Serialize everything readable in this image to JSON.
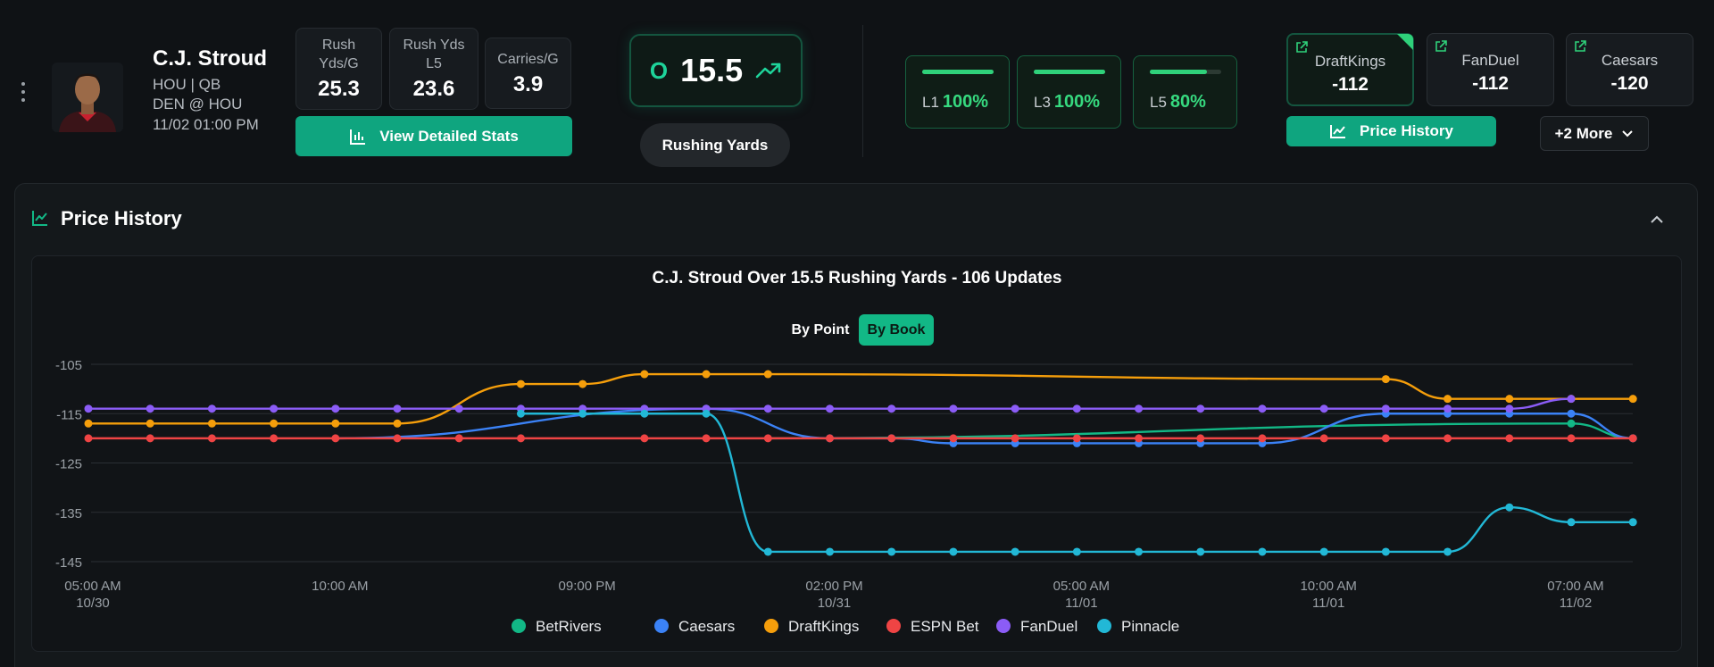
{
  "player": {
    "name": "C.J. Stroud",
    "team_pos": "HOU | QB",
    "matchup": "DEN @ HOU",
    "game_time": "11/02 01:00 PM"
  },
  "stats": [
    {
      "label": "Rush Yds/G",
      "value": "25.3"
    },
    {
      "label": "Rush Yds L5",
      "value": "23.6"
    },
    {
      "label": "Carries/G",
      "value": "3.9"
    }
  ],
  "view_stats_label": "View Detailed Stats",
  "line": {
    "side": "O",
    "value": "15.5",
    "market": "Rushing Yards"
  },
  "hit_rates": [
    {
      "label": "L1",
      "value": "100%",
      "fill": 1.0
    },
    {
      "label": "L3",
      "value": "100%",
      "fill": 1.0
    },
    {
      "label": "L5",
      "value": "80%",
      "fill": 0.8
    }
  ],
  "books": [
    {
      "name": "DraftKings",
      "odds": "-112",
      "active": true
    },
    {
      "name": "FanDuel",
      "odds": "-112",
      "active": false
    },
    {
      "name": "Caesars",
      "odds": "-120",
      "active": false
    }
  ],
  "price_history_button": "Price History",
  "more_label": "+2 More",
  "panel_title": "Price History",
  "toggle": {
    "by_point": "By Point",
    "by_book": "By Book",
    "selected": "By Book"
  },
  "colors": {
    "accent": "#0fa57f",
    "BetRivers": "#12b886",
    "Caesars": "#3b82f6",
    "DraftKings": "#f59e0b",
    "ESPN Bet": "#ef4444",
    "FanDuel": "#8b5cf6",
    "Pinnacle": "#22b8d6"
  },
  "chart_data": {
    "type": "line",
    "title": "C.J. Stroud Over 15.5 Rushing Yards - 106 Updates",
    "xlabel": "",
    "ylabel": "",
    "ylim": [
      -145,
      -105
    ],
    "yticks": [
      -105,
      -115,
      -125,
      -135,
      -145
    ],
    "xlim": [
      0,
      25
    ],
    "xticks": [
      {
        "x": 0,
        "label": "05:00 AM",
        "sub": "10/30"
      },
      {
        "x": 4,
        "label": "10:00 AM",
        "sub": ""
      },
      {
        "x": 8,
        "label": "09:00 PM",
        "sub": ""
      },
      {
        "x": 12,
        "label": "02:00 PM",
        "sub": "10/31"
      },
      {
        "x": 16,
        "label": "05:00 AM",
        "sub": "11/01"
      },
      {
        "x": 20,
        "label": "10:00 AM",
        "sub": "11/01"
      },
      {
        "x": 24,
        "label": "07:00 AM",
        "sub": "11/02"
      }
    ],
    "series": [
      {
        "name": "BetRivers",
        "x": [
          24,
          25
        ],
        "values": [
          -117,
          -120
        ],
        "line_start": 11
      },
      {
        "name": "Caesars",
        "x": [
          10,
          12,
          13,
          14,
          15,
          16,
          17,
          18,
          19,
          21,
          22,
          23,
          24,
          25
        ],
        "values": [
          -114,
          -120,
          -120,
          -121,
          -121,
          -121,
          -121,
          -121,
          -121,
          -115,
          -115,
          -115,
          -115,
          -120
        ],
        "line_start": 4
      },
      {
        "name": "DraftKings",
        "x": [
          0,
          1,
          2,
          3,
          4,
          5,
          7,
          8,
          9,
          10,
          11,
          21,
          22,
          23,
          24,
          25
        ],
        "values": [
          -117,
          -117,
          -117,
          -117,
          -117,
          -117,
          -109,
          -109,
          -107,
          -107,
          -107,
          -108,
          -112,
          -112,
          -112,
          -112
        ]
      },
      {
        "name": "ESPN Bet",
        "x": [
          0,
          1,
          2,
          3,
          4,
          5,
          6,
          7,
          9,
          10,
          11,
          12,
          13,
          14,
          15,
          16,
          17,
          18,
          19,
          20,
          21,
          22,
          23,
          24,
          25
        ],
        "values": [
          -120,
          -120,
          -120,
          -120,
          -120,
          -120,
          -120,
          -120,
          -120,
          -120,
          -120,
          -120,
          -120,
          -120,
          -120,
          -120,
          -120,
          -120,
          -120,
          -120,
          -120,
          -120,
          -120,
          -120,
          -120
        ]
      },
      {
        "name": "FanDuel",
        "x": [
          0,
          1,
          2,
          3,
          4,
          5,
          6,
          7,
          8,
          9,
          10,
          11,
          12,
          13,
          14,
          15,
          16,
          17,
          18,
          19,
          20,
          21,
          22,
          23,
          24
        ],
        "values": [
          -114,
          -114,
          -114,
          -114,
          -114,
          -114,
          -114,
          -114,
          -114,
          -114,
          -114,
          -114,
          -114,
          -114,
          -114,
          -114,
          -114,
          -114,
          -114,
          -114,
          -114,
          -114,
          -114,
          -114,
          -112
        ]
      },
      {
        "name": "Pinnacle",
        "x": [
          7,
          8,
          9,
          10,
          11,
          12,
          13,
          14,
          15,
          16,
          17,
          18,
          19,
          20,
          21,
          22,
          23,
          24,
          25
        ],
        "values": [
          -115,
          -115,
          -115,
          -115,
          -143,
          -143,
          -143,
          -143,
          -143,
          -143,
          -143,
          -143,
          -143,
          -143,
          -143,
          -143,
          -134,
          -137,
          -137
        ]
      }
    ],
    "legend": [
      "BetRivers",
      "Caesars",
      "DraftKings",
      "ESPN Bet",
      "FanDuel",
      "Pinnacle"
    ],
    "legend_position": "bottom",
    "grid": true
  }
}
